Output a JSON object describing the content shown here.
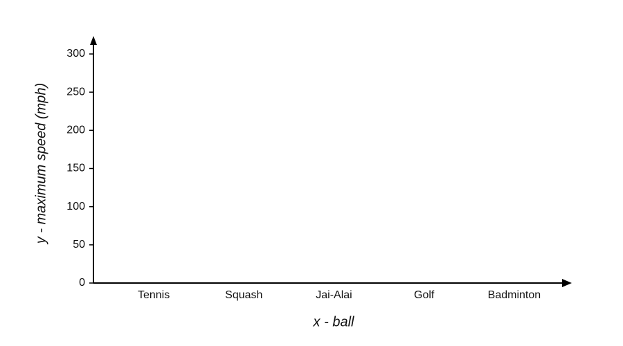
{
  "chart_data": {
    "type": "bar",
    "x_label": "x - ball",
    "y_label": "y - maximum speed (mph)",
    "categories": [
      "Tennis",
      "Squash",
      "Jai-Alai",
      "Golf",
      "Badminton"
    ],
    "ylim": [
      0,
      300
    ],
    "yticks": [
      0,
      50,
      100,
      150,
      200,
      250,
      300
    ],
    "grid": false
  }
}
